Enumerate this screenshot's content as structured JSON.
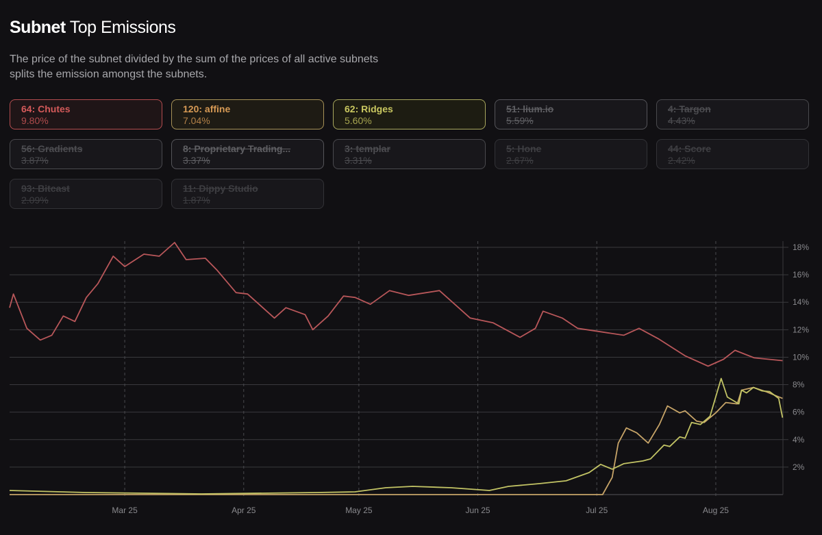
{
  "header": {
    "title_bold": "Subnet",
    "title_rest": "Top Emissions",
    "description": "The price of the subnet divided by the sum of the prices of all active subnets splits the emission amongst the subnets."
  },
  "cards": [
    {
      "name": "64: Chutes",
      "value": "9.80%",
      "active": true,
      "color": "#d45a5a",
      "border": "#b44d4f",
      "bg": "#1f1517"
    },
    {
      "name": "120: affine",
      "value": "7.04%",
      "active": true,
      "color": "#d79a55",
      "border": "#a89358",
      "bg": "#1e1b14"
    },
    {
      "name": "62: Ridges",
      "value": "5.60%",
      "active": true,
      "color": "#c9c760",
      "border": "#a9a85e",
      "bg": "#1d1c12"
    },
    {
      "name": "51: lium.io",
      "value": "5.59%",
      "active": false,
      "shade": ""
    },
    {
      "name": "4: Targon",
      "value": "4.43%",
      "active": false,
      "shade": "mid"
    },
    {
      "name": "56: Gradients",
      "value": "3.87%",
      "active": false,
      "shade": "mid"
    },
    {
      "name": "8: Proprietary Trading...",
      "value": "3.37%",
      "active": false,
      "shade": ""
    },
    {
      "name": "3: templar",
      "value": "3.31%",
      "active": false,
      "shade": "mid"
    },
    {
      "name": "5: Hone",
      "value": "2.67%",
      "active": false,
      "shade": "dim"
    },
    {
      "name": "44: Score",
      "value": "2.42%",
      "active": false,
      "shade": "dim"
    },
    {
      "name": "93: Bitcast",
      "value": "2.09%",
      "active": false,
      "shade": "dim"
    },
    {
      "name": "11: Dippy Studio",
      "value": "1.87%",
      "active": false,
      "shade": "dim"
    }
  ],
  "chart_data": {
    "type": "line",
    "title": "Subnet Top Emissions",
    "xlim": [
      -30,
      171.5
    ],
    "ylim": [
      0,
      18
    ],
    "grid": true,
    "x_ticks": [
      {
        "label": "Mar 25",
        "x": 0
      },
      {
        "label": "Apr 25",
        "x": 31
      },
      {
        "label": "May 25",
        "x": 61
      },
      {
        "label": "Jun 25",
        "x": 92
      },
      {
        "label": "Jul 25",
        "x": 123
      },
      {
        "label": "Aug 25",
        "x": 154
      }
    ],
    "y_ticks": [
      {
        "label": "2%",
        "y": 2
      },
      {
        "label": "4%",
        "y": 4
      },
      {
        "label": "6%",
        "y": 6
      },
      {
        "label": "8%",
        "y": 8
      },
      {
        "label": "10%",
        "y": 10
      },
      {
        "label": "12%",
        "y": 12
      },
      {
        "label": "14%",
        "y": 14
      },
      {
        "label": "16%",
        "y": 16
      },
      {
        "label": "18%",
        "y": 18
      }
    ],
    "series": [
      {
        "name": "64: Chutes",
        "color": "#b9575a",
        "points": [
          [
            -30,
            13.6
          ],
          [
            -29,
            14.6
          ],
          [
            -25.5,
            12.1
          ],
          [
            -22,
            11.25
          ],
          [
            -19,
            11.6
          ],
          [
            -16,
            13
          ],
          [
            -13,
            12.6
          ],
          [
            -10,
            14.35
          ],
          [
            -7,
            15.35
          ],
          [
            -3,
            17.35
          ],
          [
            0,
            16.6
          ],
          [
            5,
            17.5
          ],
          [
            9,
            17.35
          ],
          [
            13,
            18.35
          ],
          [
            16,
            17.1
          ],
          [
            21,
            17.2
          ],
          [
            24,
            16.35
          ],
          [
            29,
            14.7
          ],
          [
            32,
            14.6
          ],
          [
            39,
            12.85
          ],
          [
            42,
            13.6
          ],
          [
            47,
            13.1
          ],
          [
            49,
            12
          ],
          [
            53,
            13
          ],
          [
            57,
            14.45
          ],
          [
            60,
            14.35
          ],
          [
            64,
            13.85
          ],
          [
            69,
            14.85
          ],
          [
            74,
            14.5
          ],
          [
            82,
            14.85
          ],
          [
            85,
            14.1
          ],
          [
            90,
            12.85
          ],
          [
            96,
            12.5
          ],
          [
            103,
            11.45
          ],
          [
            107,
            12.1
          ],
          [
            109,
            13.35
          ],
          [
            114,
            12.85
          ],
          [
            118,
            12.1
          ],
          [
            124,
            11.85
          ],
          [
            130,
            11.6
          ],
          [
            134,
            12.1
          ],
          [
            139,
            11.35
          ],
          [
            146,
            10.1
          ],
          [
            152,
            9.35
          ],
          [
            156,
            9.85
          ],
          [
            159,
            10.5
          ],
          [
            164,
            9.95
          ],
          [
            171.4,
            9.75
          ]
        ]
      },
      {
        "name": "120: affine",
        "color": "#c7a468",
        "points": [
          [
            -30,
            0
          ],
          [
            124.5,
            0
          ],
          [
            127,
            1.25
          ],
          [
            128.6,
            3.75
          ],
          [
            130.7,
            4.85
          ],
          [
            133.4,
            4.5
          ],
          [
            136.4,
            3.75
          ],
          [
            139.3,
            5.1
          ],
          [
            141.4,
            6.45
          ],
          [
            144.6,
            5.95
          ],
          [
            146,
            6.1
          ],
          [
            149,
            5.35
          ],
          [
            151,
            5.25
          ],
          [
            154,
            5.95
          ],
          [
            156.6,
            6.7
          ],
          [
            159.6,
            6.6
          ],
          [
            160.7,
            7.6
          ],
          [
            163.8,
            7.8
          ],
          [
            167,
            7.5
          ],
          [
            169.6,
            7.2
          ],
          [
            171.4,
            7.0
          ]
        ]
      },
      {
        "name": "62: Ridges",
        "color": "#c3c465",
        "points": [
          [
            -30,
            0.3
          ],
          [
            -10,
            0.15
          ],
          [
            20,
            0.05
          ],
          [
            50,
            0.15
          ],
          [
            60,
            0.2
          ],
          [
            68,
            0.5
          ],
          [
            75,
            0.6
          ],
          [
            85,
            0.5
          ],
          [
            95,
            0.3
          ],
          [
            100,
            0.6
          ],
          [
            108,
            0.8
          ],
          [
            115,
            1.0
          ],
          [
            119,
            1.4
          ],
          [
            121,
            1.6
          ],
          [
            124,
            2.2
          ],
          [
            127,
            1.85
          ],
          [
            130,
            2.25
          ],
          [
            135,
            2.45
          ],
          [
            137,
            2.6
          ],
          [
            140.5,
            3.6
          ],
          [
            142,
            3.5
          ],
          [
            144.6,
            4.2
          ],
          [
            146,
            4.1
          ],
          [
            147.7,
            5.25
          ],
          [
            150,
            5.1
          ],
          [
            152.5,
            5.7
          ],
          [
            155.4,
            8.45
          ],
          [
            157,
            7.1
          ],
          [
            160,
            6.6
          ],
          [
            160.7,
            7.6
          ],
          [
            162,
            7.4
          ],
          [
            163.8,
            7.8
          ],
          [
            166,
            7.55
          ],
          [
            168,
            7.5
          ],
          [
            170.4,
            7.0
          ],
          [
            171.4,
            5.6
          ]
        ]
      }
    ]
  }
}
